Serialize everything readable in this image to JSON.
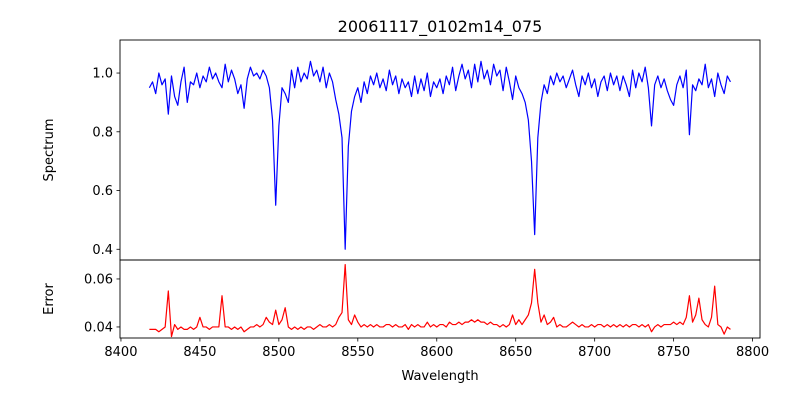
{
  "chart_data": [
    {
      "type": "line",
      "title": "20061117_0102m14_075",
      "xlabel": "",
      "ylabel": "Spectrum",
      "xlim": [
        8399.4,
        8804.7
      ],
      "ylim": [
        0.3635,
        1.1125
      ],
      "yticks": [
        0.4,
        0.6,
        0.8,
        1.0
      ],
      "ytick_labels": [
        "0.4",
        "0.6",
        "0.8",
        "1.0"
      ],
      "grid": false,
      "x_start": 8418,
      "x_step": 2,
      "series": [
        {
          "name": "Spectrum",
          "color": "#0000ff",
          "values": [
            0.95,
            0.97,
            0.93,
            1.0,
            0.96,
            0.98,
            0.86,
            0.99,
            0.92,
            0.89,
            0.97,
            1.02,
            0.9,
            0.97,
            0.96,
            1.0,
            0.95,
            0.99,
            0.97,
            1.02,
            0.98,
            1.0,
            0.97,
            0.95,
            1.03,
            0.97,
            1.01,
            0.98,
            0.93,
            0.96,
            0.88,
            0.98,
            1.02,
            0.99,
            1.0,
            0.98,
            1.01,
            0.99,
            0.95,
            0.84,
            0.55,
            0.82,
            0.95,
            0.93,
            0.9,
            1.01,
            0.95,
            1.02,
            0.97,
            1.0,
            0.98,
            1.04,
            0.99,
            1.01,
            0.97,
            1.02,
            0.95,
            1.0,
            0.97,
            0.91,
            0.86,
            0.78,
            0.4,
            0.75,
            0.87,
            0.92,
            0.95,
            0.9,
            0.97,
            0.93,
            0.99,
            0.96,
            1.0,
            0.95,
            0.98,
            0.94,
            1.01,
            0.96,
            0.99,
            0.93,
            0.98,
            0.95,
            0.97,
            0.92,
            0.99,
            0.93,
            0.98,
            0.94,
            1.0,
            0.92,
            0.97,
            0.95,
            0.98,
            0.93,
            0.99,
            0.96,
            1.02,
            0.94,
            0.99,
            1.03,
            0.98,
            1.01,
            0.95,
            1.03,
            0.97,
            1.04,
            0.98,
            1.01,
            0.96,
            1.03,
            0.99,
            1.01,
            0.94,
            1.02,
            0.97,
            0.91,
            0.99,
            0.95,
            0.93,
            0.9,
            0.84,
            0.7,
            0.45,
            0.78,
            0.9,
            0.96,
            0.93,
            0.99,
            0.96,
            1.0,
            0.97,
            0.99,
            0.95,
            0.98,
            1.01,
            0.96,
            0.92,
            0.99,
            0.96,
            1.0,
            0.95,
            0.98,
            0.92,
            0.97,
            0.99,
            0.94,
            1.0,
            0.96,
            0.99,
            0.94,
            0.99,
            0.96,
            0.92,
            1.01,
            0.95,
            1.0,
            0.97,
            1.02,
            0.95,
            0.82,
            0.96,
            0.99,
            0.95,
            0.98,
            0.94,
            0.91,
            0.89,
            0.96,
            0.99,
            0.95,
            1.01,
            0.79,
            0.96,
            0.94,
            0.98,
            0.96,
            1.03,
            0.95,
            0.98,
            0.92,
            1.0,
            0.96,
            0.93,
            0.99,
            0.97
          ]
        }
      ]
    },
    {
      "type": "line",
      "xlabel": "Wavelength",
      "ylabel": "Error",
      "xlim": [
        8399.4,
        8804.7
      ],
      "ylim": [
        0.0354,
        0.0679
      ],
      "xticks": [
        8400,
        8450,
        8500,
        8550,
        8600,
        8650,
        8700,
        8750,
        8800
      ],
      "xtick_labels": [
        "8400",
        "8450",
        "8500",
        "8550",
        "8600",
        "8650",
        "8700",
        "8750",
        "8800"
      ],
      "yticks": [
        0.04,
        0.06
      ],
      "ytick_labels": [
        "0.04",
        "0.06"
      ],
      "grid": false,
      "x_start": 8418,
      "x_step": 2,
      "series": [
        {
          "name": "Error",
          "color": "#ff0000",
          "values": [
            0.039,
            0.039,
            0.039,
            0.038,
            0.039,
            0.04,
            0.055,
            0.036,
            0.041,
            0.039,
            0.04,
            0.039,
            0.039,
            0.04,
            0.039,
            0.04,
            0.044,
            0.04,
            0.04,
            0.039,
            0.04,
            0.04,
            0.04,
            0.053,
            0.04,
            0.04,
            0.039,
            0.04,
            0.039,
            0.04,
            0.038,
            0.039,
            0.04,
            0.04,
            0.041,
            0.04,
            0.041,
            0.044,
            0.042,
            0.041,
            0.047,
            0.041,
            0.043,
            0.048,
            0.04,
            0.039,
            0.04,
            0.039,
            0.04,
            0.039,
            0.04,
            0.04,
            0.039,
            0.04,
            0.041,
            0.04,
            0.04,
            0.041,
            0.04,
            0.041,
            0.044,
            0.046,
            0.066,
            0.043,
            0.041,
            0.045,
            0.042,
            0.04,
            0.041,
            0.04,
            0.041,
            0.04,
            0.041,
            0.04,
            0.04,
            0.041,
            0.041,
            0.04,
            0.041,
            0.04,
            0.04,
            0.041,
            0.039,
            0.041,
            0.04,
            0.041,
            0.04,
            0.04,
            0.042,
            0.04,
            0.041,
            0.04,
            0.041,
            0.041,
            0.04,
            0.042,
            0.041,
            0.041,
            0.042,
            0.041,
            0.042,
            0.042,
            0.043,
            0.042,
            0.043,
            0.042,
            0.042,
            0.041,
            0.042,
            0.041,
            0.041,
            0.04,
            0.041,
            0.04,
            0.041,
            0.045,
            0.041,
            0.043,
            0.041,
            0.043,
            0.045,
            0.05,
            0.064,
            0.05,
            0.042,
            0.045,
            0.041,
            0.042,
            0.044,
            0.04,
            0.041,
            0.04,
            0.04,
            0.041,
            0.042,
            0.041,
            0.04,
            0.041,
            0.04,
            0.04,
            0.041,
            0.04,
            0.041,
            0.041,
            0.04,
            0.041,
            0.04,
            0.041,
            0.04,
            0.041,
            0.04,
            0.041,
            0.04,
            0.041,
            0.041,
            0.04,
            0.041,
            0.04,
            0.041,
            0.038,
            0.04,
            0.041,
            0.04,
            0.041,
            0.041,
            0.041,
            0.042,
            0.041,
            0.042,
            0.041,
            0.044,
            0.053,
            0.042,
            0.045,
            0.052,
            0.043,
            0.041,
            0.04,
            0.044,
            0.057,
            0.041,
            0.04,
            0.037,
            0.04,
            0.039
          ]
        }
      ]
    }
  ]
}
